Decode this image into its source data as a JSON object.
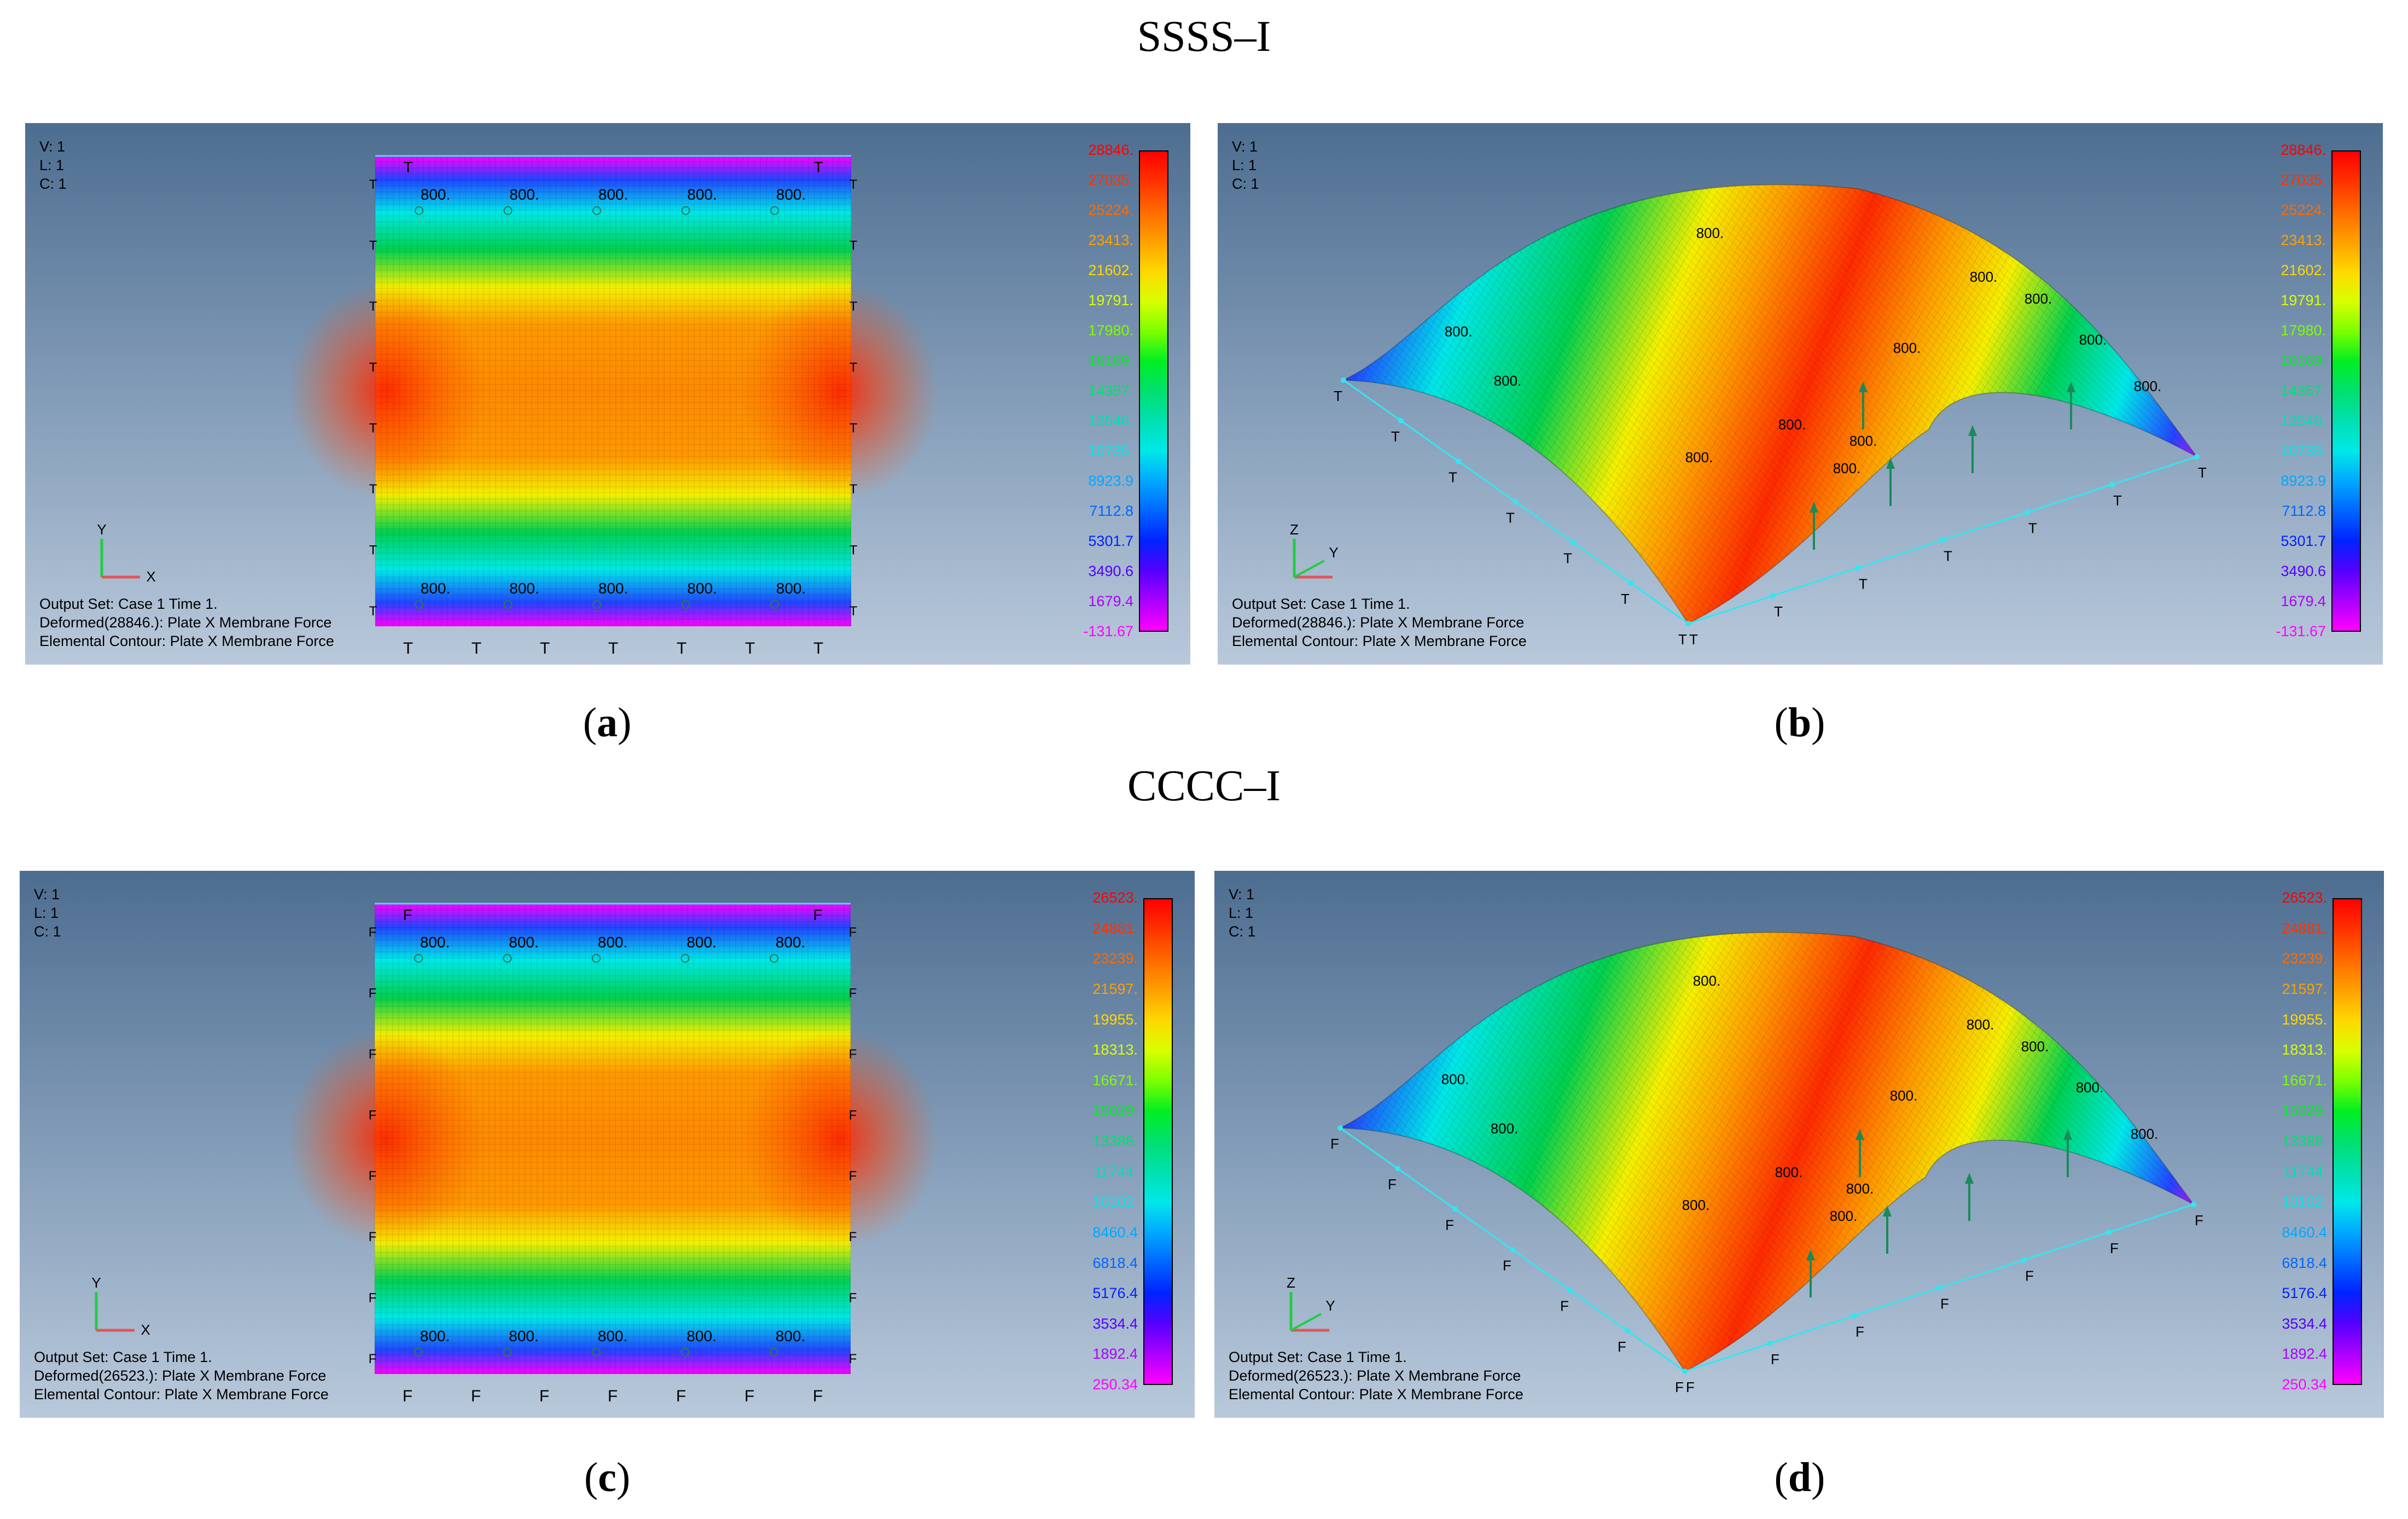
{
  "groups": [
    {
      "title": "SSSS–I"
    },
    {
      "title": "CCCC–I"
    }
  ],
  "panels": [
    {
      "caption": "a",
      "view": "2d",
      "support": "T",
      "vlc": [
        "V: 1",
        "L: 1",
        "C: 1"
      ],
      "info": [
        "Output Set: Case 1 Time 1.",
        "Deformed(28846.): Plate X Membrane Force",
        "Elemental Contour: Plate X Membrane Force"
      ],
      "legend": [
        "28846.",
        "27035.",
        "25224.",
        "23413.",
        "21602.",
        "19791.",
        "17980.",
        "16169.",
        "14357.",
        "12546.",
        "10735.",
        "8923.9",
        "7112.8",
        "5301.7",
        "3490.6",
        "1679.4",
        "-131.67"
      ],
      "load_label": "800.",
      "axes": {
        "vertical": "Y",
        "horizontal": "X"
      }
    },
    {
      "caption": "b",
      "view": "3d",
      "support": "T",
      "vlc": [
        "V: 1",
        "L: 1",
        "C: 1"
      ],
      "info": [
        "Output Set: Case 1 Time 1.",
        "Deformed(28846.): Plate X Membrane Force",
        "Elemental Contour: Plate X Membrane Force"
      ],
      "legend": [
        "28846.",
        "27035.",
        "25224.",
        "23413.",
        "21602.",
        "19791.",
        "17980.",
        "16169.",
        "14357.",
        "12546.",
        "10735.",
        "8923.9",
        "7112.8",
        "5301.7",
        "3490.6",
        "1679.4",
        "-131.67"
      ],
      "load_label": "800.",
      "axes": {
        "vertical": "Z",
        "horizontal": "Y"
      }
    },
    {
      "caption": "c",
      "view": "2d",
      "support": "F",
      "vlc": [
        "V: 1",
        "L: 1",
        "C: 1"
      ],
      "info": [
        "Output Set: Case 1 Time 1.",
        "Deformed(26523.): Plate X Membrane Force",
        "Elemental Contour: Plate X Membrane Force"
      ],
      "legend": [
        "26523.",
        "24881.",
        "23239.",
        "21597.",
        "19955.",
        "18313.",
        "16671.",
        "15029.",
        "13386.",
        "11744.",
        "10102.",
        "8460.4",
        "6818.4",
        "5176.4",
        "3534.4",
        "1892.4",
        "250.34"
      ],
      "load_label": "800.",
      "axes": {
        "vertical": "Y",
        "horizontal": "X"
      }
    },
    {
      "caption": "d",
      "view": "3d",
      "support": "F",
      "vlc": [
        "V: 1",
        "L: 1",
        "C: 1"
      ],
      "info": [
        "Output Set: Case 1 Time 1.",
        "Deformed(26523.): Plate X Membrane Force",
        "Elemental Contour: Plate X Membrane Force"
      ],
      "legend": [
        "26523.",
        "24881.",
        "23239.",
        "21597.",
        "19955.",
        "18313.",
        "16671.",
        "15029.",
        "13386.",
        "11744.",
        "10102.",
        "8460.4",
        "6818.4",
        "5176.4",
        "3534.4",
        "1892.4",
        "250.34"
      ],
      "load_label": "800.",
      "axes": {
        "vertical": "Z",
        "horizontal": "Y"
      }
    }
  ],
  "colors": {
    "legend_scale": [
      "#ff0000",
      "#ff3300",
      "#ff6a00",
      "#ffa000",
      "#ffd800",
      "#d8ff00",
      "#7cff00",
      "#00ee22",
      "#00e070",
      "#00e0b0",
      "#00e8e8",
      "#00a8ff",
      "#0066ff",
      "#0022ff",
      "#5500ff",
      "#aa00ff",
      "#ff00ff"
    ],
    "support_line": "#33e6f0",
    "arrow": "#1a8a5a",
    "panel_top": "#4d6d90",
    "panel_bottom": "#b9c9db"
  }
}
